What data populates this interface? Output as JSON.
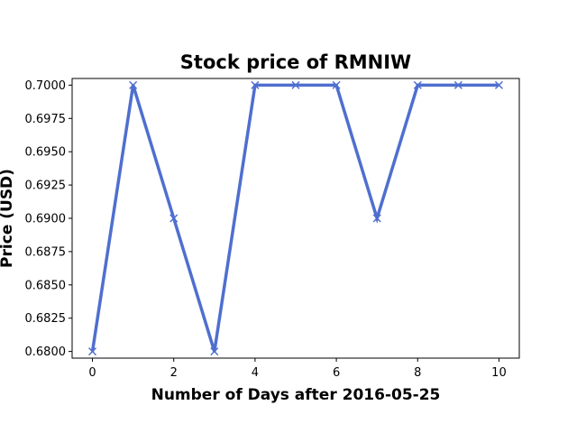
{
  "chart_data": {
    "type": "line",
    "title": "Stock price of RMNIW",
    "xlabel": "Number of Days after 2016-05-25",
    "ylabel": "Price (USD)",
    "x": [
      0,
      1,
      2,
      3,
      4,
      5,
      6,
      7,
      8,
      9,
      10
    ],
    "series": [
      {
        "values": [
          0.68,
          0.7,
          0.69,
          0.68,
          0.7,
          0.7,
          0.7,
          0.69,
          0.7,
          0.7,
          0.7
        ]
      }
    ],
    "xlim": [
      -0.5,
      10.5
    ],
    "ylim": [
      0.6795,
      0.7005
    ],
    "xticks": [
      0,
      2,
      4,
      6,
      8,
      10
    ],
    "yticks": [
      0.68,
      0.6825,
      0.685,
      0.6875,
      0.69,
      0.6925,
      0.695,
      0.6975,
      0.7
    ],
    "ytick_labels": [
      "0.6800",
      "0.6825",
      "0.6850",
      "0.6875",
      "0.6900",
      "0.6925",
      "0.6950",
      "0.6975",
      "0.7000"
    ],
    "line_color": "#4f6fcf",
    "marker": "x",
    "grid": false
  }
}
